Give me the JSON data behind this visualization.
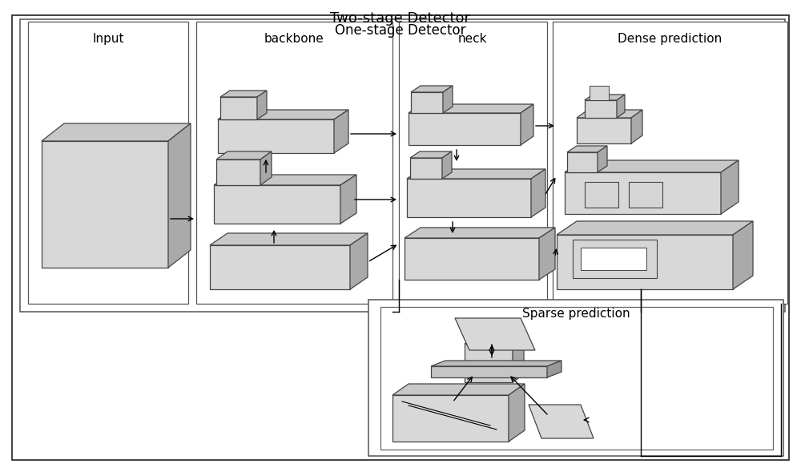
{
  "title_two_stage": "Two-stage Detector",
  "title_one_stage": "One-stage Detector",
  "section_labels": [
    "Input",
    "backbone",
    "neck",
    "Dense prediction"
  ],
  "sparse_label": "Sparse prediction",
  "face_color": "#d8d8d8",
  "side_color": "#aaaaaa",
  "top_color": "#c8c8c8",
  "edge_color": "#444444"
}
